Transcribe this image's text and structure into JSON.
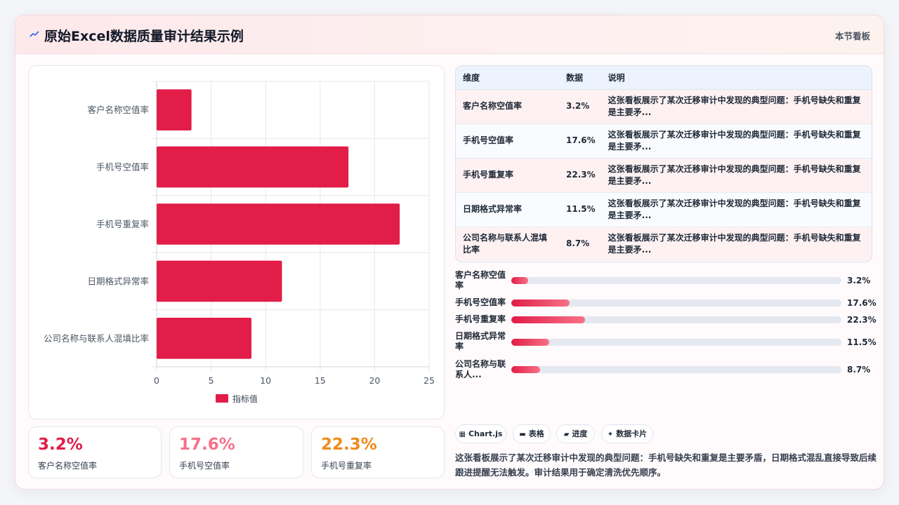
{
  "header": {
    "title": "原始Excel数据质量审计结果示例",
    "tag": "本节看板"
  },
  "chart_data": {
    "type": "bar",
    "orientation": "horizontal",
    "categories": [
      "客户名称空值率",
      "手机号空值率",
      "手机号重复率",
      "日期格式异常率",
      "公司名称与联系人混填比率"
    ],
    "series": [
      {
        "name": "指标值",
        "values": [
          3.2,
          17.6,
          22.3,
          11.5,
          8.7
        ],
        "color": "#e11d48"
      }
    ],
    "xlim": [
      0,
      25
    ],
    "xticks": [
      "0",
      "5",
      "10",
      "15",
      "20",
      "25"
    ],
    "grid": true,
    "legend_position": "bottom"
  },
  "kpis": [
    {
      "value": "3.2%",
      "label": "客户名称空值率",
      "color": "#e11d48"
    },
    {
      "value": "17.6%",
      "label": "手机号空值率",
      "color": "#f4728a"
    },
    {
      "value": "22.3%",
      "label": "手机号重复率",
      "color": "#f08a1c"
    }
  ],
  "table": {
    "headers": [
      "维度",
      "数据",
      "说明"
    ],
    "rows": [
      {
        "dim": "客户名称空值率",
        "val": "3.2%",
        "note": "这张看板展示了某次迁移审计中发现的典型问题：手机号缺失和重复是主要矛..."
      },
      {
        "dim": "手机号空值率",
        "val": "17.6%",
        "note": "这张看板展示了某次迁移审计中发现的典型问题：手机号缺失和重复是主要矛..."
      },
      {
        "dim": "手机号重复率",
        "val": "22.3%",
        "note": "这张看板展示了某次迁移审计中发现的典型问题：手机号缺失和重复是主要矛..."
      },
      {
        "dim": "日期格式异常率",
        "val": "11.5%",
        "note": "这张看板展示了某次迁移审计中发现的典型问题：手机号缺失和重复是主要矛..."
      },
      {
        "dim": "公司名称与联系人混填比率",
        "val": "8.7%",
        "note": "这张看板展示了某次迁移审计中发现的典型问题：手机号缺失和重复是主要矛..."
      }
    ]
  },
  "progress": [
    {
      "label": "客户名称空值率",
      "value": "3.2%",
      "fraction": 0.032
    },
    {
      "label": "手机号空值率",
      "value": "17.6%",
      "fraction": 0.176
    },
    {
      "label": "手机号重复率",
      "value": "22.3%",
      "fraction": 0.223
    },
    {
      "label": "日期格式异常率",
      "value": "11.5%",
      "fraction": 0.115
    },
    {
      "label": "公司名称与联系人...",
      "value": "8.7%",
      "fraction": 0.087
    }
  ],
  "chips": [
    {
      "icon": "chart-icon",
      "glyph": "▦",
      "label": "Chart.js"
    },
    {
      "icon": "table-icon",
      "glyph": "▬",
      "label": "表格"
    },
    {
      "icon": "progress-icon",
      "glyph": "▰",
      "label": "进度"
    },
    {
      "icon": "sparkle-icon",
      "glyph": "✦",
      "label": "数据卡片"
    }
  ],
  "description": "这张看板展示了某次迁移审计中发现的典型问题：手机号缺失和重复是主要矛盾，日期格式混乱直接导致后续跟进提醒无法触发。审计结果用于确定清洗优先顺序。"
}
